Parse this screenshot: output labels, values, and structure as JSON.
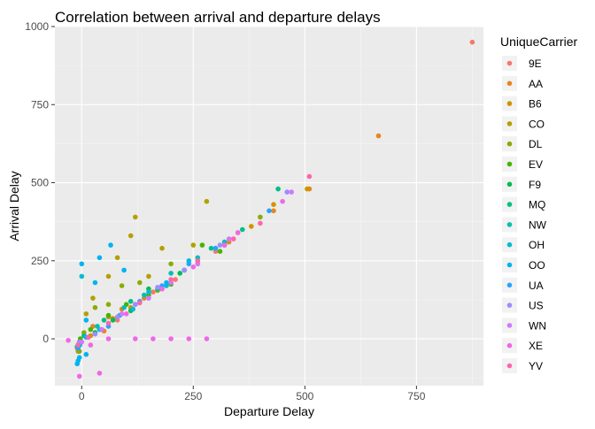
{
  "chart_data": {
    "type": "scatter",
    "title": "Correlation between arrival and departure delays",
    "xlabel": "Departure Delay",
    "ylabel": "Arrival Delay",
    "xlim": [
      -60,
      900
    ],
    "ylim": [
      -150,
      1000
    ],
    "x_ticks": [
      0,
      250,
      500,
      750
    ],
    "y_ticks": [
      0,
      250,
      500,
      750,
      1000
    ],
    "grid": true,
    "legend_position": "right",
    "legend_title": "UniqueCarrier",
    "series": [
      {
        "name": "9E",
        "color": "#F8766D",
        "points": [
          [
            875,
            950
          ],
          [
            45,
            30
          ],
          [
            120,
            110
          ],
          [
            210,
            190
          ],
          [
            15,
            5
          ],
          [
            -5,
            -20
          ],
          [
            80,
            60
          ],
          [
            300,
            280
          ],
          [
            160,
            150
          ],
          [
            30,
            20
          ]
        ]
      },
      {
        "name": "AA",
        "color": "#E7851E",
        "points": [
          [
            665,
            650
          ],
          [
            510,
            480
          ],
          [
            430,
            410
          ],
          [
            -10,
            -30
          ],
          [
            25,
            40
          ],
          [
            60,
            70
          ],
          [
            140,
            130
          ],
          [
            230,
            220
          ],
          [
            330,
            310
          ],
          [
            90,
            95
          ],
          [
            50,
            25
          ]
        ]
      },
      {
        "name": "B6",
        "color": "#D09400",
        "points": [
          [
            505,
            480
          ],
          [
            430,
            430
          ],
          [
            180,
            160
          ],
          [
            20,
            10
          ],
          [
            70,
            65
          ],
          [
            110,
            100
          ],
          [
            -8,
            -40
          ],
          [
            260,
            250
          ],
          [
            380,
            360
          ]
        ]
      },
      {
        "name": "CO",
        "color": "#B2A100",
        "points": [
          [
            280,
            440
          ],
          [
            120,
            390
          ],
          [
            25,
            130
          ],
          [
            110,
            330
          ],
          [
            250,
            300
          ],
          [
            180,
            290
          ],
          [
            80,
            260
          ],
          [
            60,
            200
          ],
          [
            10,
            80
          ],
          [
            -5,
            -10
          ],
          [
            150,
            200
          ],
          [
            350,
            340
          ]
        ]
      },
      {
        "name": "DL",
        "color": "#89AC00",
        "points": [
          [
            400,
            390
          ],
          [
            200,
            240
          ],
          [
            90,
            170
          ],
          [
            130,
            180
          ],
          [
            30,
            100
          ],
          [
            60,
            110
          ],
          [
            5,
            20
          ],
          [
            -5,
            -40
          ],
          [
            170,
            155
          ],
          [
            260,
            240
          ]
        ]
      },
      {
        "name": "EV",
        "color": "#45B500",
        "points": [
          [
            310,
            280
          ],
          [
            270,
            300
          ],
          [
            150,
            140
          ],
          [
            60,
            75
          ],
          [
            20,
            30
          ],
          [
            100,
            110
          ],
          [
            -3,
            0
          ],
          [
            200,
            175
          ]
        ]
      },
      {
        "name": "F9",
        "color": "#00BC51",
        "points": [
          [
            320,
            300
          ],
          [
            150,
            160
          ],
          [
            70,
            60
          ],
          [
            30,
            20
          ],
          [
            -8,
            -20
          ],
          [
            220,
            210
          ],
          [
            110,
            90
          ]
        ]
      },
      {
        "name": "MQ",
        "color": "#00C087",
        "points": [
          [
            440,
            480
          ],
          [
            290,
            290
          ],
          [
            110,
            120
          ],
          [
            50,
            60
          ],
          [
            5,
            10
          ],
          [
            -10,
            -25
          ],
          [
            230,
            220
          ],
          [
            170,
            160
          ],
          [
            360,
            350
          ]
        ]
      },
      {
        "name": "NW",
        "color": "#00C0B2",
        "points": [
          [
            320,
            310
          ],
          [
            200,
            210
          ],
          [
            95,
            100
          ],
          [
            35,
            40
          ],
          [
            -6,
            -15
          ],
          [
            140,
            140
          ],
          [
            260,
            260
          ]
        ]
      },
      {
        "name": "OH",
        "color": "#00BCD6",
        "points": [
          [
            240,
            250
          ],
          [
            150,
            150
          ],
          [
            85,
            75
          ],
          [
            40,
            30
          ],
          [
            -4,
            -20
          ],
          [
            0,
            200
          ],
          [
            115,
            95
          ],
          [
            190,
            170
          ]
        ]
      },
      {
        "name": "OO",
        "color": "#00B3F2",
        "points": [
          [
            0,
            240
          ],
          [
            40,
            260
          ],
          [
            65,
            300
          ],
          [
            95,
            220
          ],
          [
            30,
            180
          ],
          [
            -5,
            -60
          ],
          [
            -10,
            -80
          ],
          [
            10,
            -50
          ],
          [
            120,
            110
          ],
          [
            190,
            180
          ],
          [
            300,
            290
          ],
          [
            10,
            60
          ],
          [
            -8,
            -70
          ]
        ]
      },
      {
        "name": "UA",
        "color": "#29A3FF",
        "points": [
          [
            420,
            410
          ],
          [
            240,
            240
          ],
          [
            130,
            120
          ],
          [
            60,
            40
          ],
          [
            10,
            5
          ],
          [
            -8,
            -30
          ],
          [
            300,
            290
          ],
          [
            180,
            170
          ]
        ]
      },
      {
        "name": "US",
        "color": "#9C8DFF",
        "points": [
          [
            460,
            470
          ],
          [
            310,
            300
          ],
          [
            170,
            165
          ],
          [
            80,
            70
          ],
          [
            30,
            15
          ],
          [
            -5,
            -10
          ],
          [
            120,
            110
          ],
          [
            230,
            220
          ]
        ]
      },
      {
        "name": "WN",
        "color": "#D277FF",
        "points": [
          [
            470,
            470
          ],
          [
            330,
            320
          ],
          [
            200,
            180
          ],
          [
            90,
            80
          ],
          [
            45,
            30
          ],
          [
            0,
            -10
          ],
          [
            150,
            130
          ],
          [
            260,
            240
          ]
        ]
      },
      {
        "name": "XE",
        "color": "#F166E8",
        "points": [
          [
            450,
            440
          ],
          [
            160,
            0
          ],
          [
            200,
            0
          ],
          [
            240,
            0
          ],
          [
            280,
            0
          ],
          [
            120,
            0
          ],
          [
            60,
            0
          ],
          [
            -30,
            -5
          ],
          [
            20,
            -20
          ],
          [
            40,
            -110
          ],
          [
            -5,
            -120
          ],
          [
            100,
            80
          ],
          [
            180,
            160
          ],
          [
            250,
            230
          ],
          [
            320,
            300
          ],
          [
            350,
            340
          ]
        ]
      },
      {
        "name": "YV",
        "color": "#FF65AC",
        "points": [
          [
            510,
            520
          ],
          [
            400,
            370
          ],
          [
            260,
            250
          ],
          [
            130,
            115
          ],
          [
            60,
            50
          ],
          [
            15,
            5
          ],
          [
            -8,
            -20
          ],
          [
            200,
            190
          ],
          [
            340,
            320
          ]
        ]
      }
    ]
  }
}
